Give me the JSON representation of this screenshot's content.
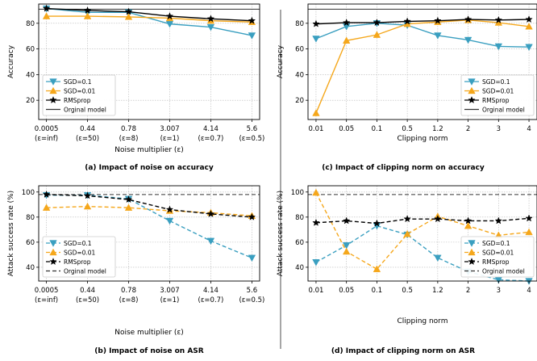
{
  "colors": {
    "sgd01": "#3a9fc0",
    "sgd001": "#f5a71b",
    "rms": "#000000",
    "orig": "#555555"
  },
  "chart_data": [
    {
      "id": "a",
      "type": "line",
      "caption": "(a) Impact of noise on accuracy",
      "xlabel": "Noise multiplier (ε)",
      "ylabel": "Accuracy",
      "categories": [
        "0.0005",
        "0.44",
        "0.78",
        "3.007",
        "4.14",
        "5.6"
      ],
      "category_sublabels": [
        "(ε=inf)",
        "(ε=50)",
        "(ε=8)",
        "(ε=1)",
        "(ε=0.7)",
        "(ε=0.5)"
      ],
      "ylim": [
        5,
        95
      ],
      "yticks": [
        20,
        40,
        60,
        80
      ],
      "grid": true,
      "legend": "bottom-left",
      "line_style": "solid",
      "series": [
        {
          "name": "SGD=0.1",
          "color": "sgd01",
          "marker": "triangle-down",
          "values": [
            91.5,
            88.5,
            88.5,
            79.5,
            77,
            70.5
          ]
        },
        {
          "name": "SGD=0.01",
          "color": "sgd001",
          "marker": "triangle-up",
          "values": [
            85.5,
            85.5,
            85,
            84,
            82,
            81
          ]
        },
        {
          "name": "RMSprop",
          "color": "rms",
          "marker": "star",
          "values": [
            91.5,
            90,
            89,
            85.5,
            83.5,
            82
          ]
        }
      ],
      "reference": {
        "name": "Orginal model",
        "value": 91
      }
    },
    {
      "id": "c",
      "type": "line",
      "caption": "(c) Impact of clipping norm on accuracy",
      "xlabel": "Clipping norm",
      "ylabel": "Accuracy",
      "categories": [
        "0.01",
        "0.05",
        "0.1",
        "0.5",
        "1.2",
        "2",
        "3",
        "4"
      ],
      "ylim": [
        5,
        95
      ],
      "yticks": [
        20,
        40,
        60,
        80
      ],
      "grid": true,
      "legend": "bottom-right",
      "line_style": "solid",
      "series": [
        {
          "name": "SGD=0.1",
          "color": "sgd01",
          "marker": "triangle-down",
          "values": [
            68,
            77.5,
            80,
            78.5,
            70.5,
            67,
            62,
            61.5
          ]
        },
        {
          "name": "SGD=0.01",
          "color": "sgd001",
          "marker": "triangle-up",
          "values": [
            10,
            66.5,
            71,
            79.5,
            81,
            82.5,
            80.5,
            77.5
          ]
        },
        {
          "name": "RMSprop",
          "color": "rms",
          "marker": "star",
          "values": [
            79.5,
            80.5,
            80.5,
            81.5,
            82,
            83,
            82.5,
            83
          ]
        }
      ],
      "reference": {
        "name": "Orginal model",
        "value": 91
      }
    },
    {
      "id": "b",
      "type": "line",
      "caption": "(b) Impact of noise on ASR",
      "xlabel": "Noise multiplier (ε)",
      "ylabel": "Attack success rate (%)",
      "categories": [
        "0.0005",
        "0.44",
        "0.78",
        "3.007",
        "4.14",
        "5.6"
      ],
      "category_sublabels": [
        "(ε=inf)",
        "(ε=50)",
        "(ε=8)",
        "(ε=1)",
        "(ε=0.7)",
        "(ε=0.5)"
      ],
      "ylim": [
        29,
        105
      ],
      "yticks": [
        40,
        60,
        80,
        100
      ],
      "grid": true,
      "legend": "bottom-left",
      "line_style": "dashed",
      "series": [
        {
          "name": "SGD=0.1",
          "color": "sgd01",
          "marker": "triangle-down",
          "values": [
            97.5,
            97.5,
            94.5,
            77,
            61,
            47.5
          ]
        },
        {
          "name": "SGD=0.01",
          "color": "sgd001",
          "marker": "triangle-up",
          "values": [
            87.5,
            88.5,
            87.5,
            85,
            83.5,
            81
          ]
        },
        {
          "name": "RMSprop",
          "color": "rms",
          "marker": "star",
          "values": [
            98,
            97,
            94,
            86,
            82.5,
            80
          ]
        }
      ],
      "reference": {
        "name": "Orginal model",
        "value": 98
      }
    },
    {
      "id": "d",
      "type": "line",
      "caption": "(d) Impact of clipping norm on ASR",
      "xlabel": "Clipping norm",
      "ylabel": "Attack success rate (%)",
      "categories": [
        "0.01",
        "0.05",
        "0.1",
        "0.5",
        "1.2",
        "2",
        "3",
        "4"
      ],
      "ylim": [
        29,
        105
      ],
      "yticks": [
        40,
        60,
        80,
        100
      ],
      "grid": true,
      "legend": "bottom-right",
      "line_style": "dashed",
      "series": [
        {
          "name": "SGD=0.1",
          "color": "sgd01",
          "marker": "triangle-down",
          "values": [
            44,
            57.5,
            73,
            66,
            47.5,
            36.5,
            30,
            29
          ]
        },
        {
          "name": "SGD=0.01",
          "color": "sgd001",
          "marker": "triangle-up",
          "values": [
            99.5,
            52.5,
            38.5,
            66.5,
            80.5,
            73,
            65.5,
            68
          ]
        },
        {
          "name": "RMSprop",
          "color": "rms",
          "marker": "star",
          "values": [
            75.5,
            77,
            75,
            78.5,
            78.5,
            77,
            77,
            79
          ]
        }
      ],
      "reference": {
        "name": "Orginal model",
        "value": 98
      }
    }
  ]
}
